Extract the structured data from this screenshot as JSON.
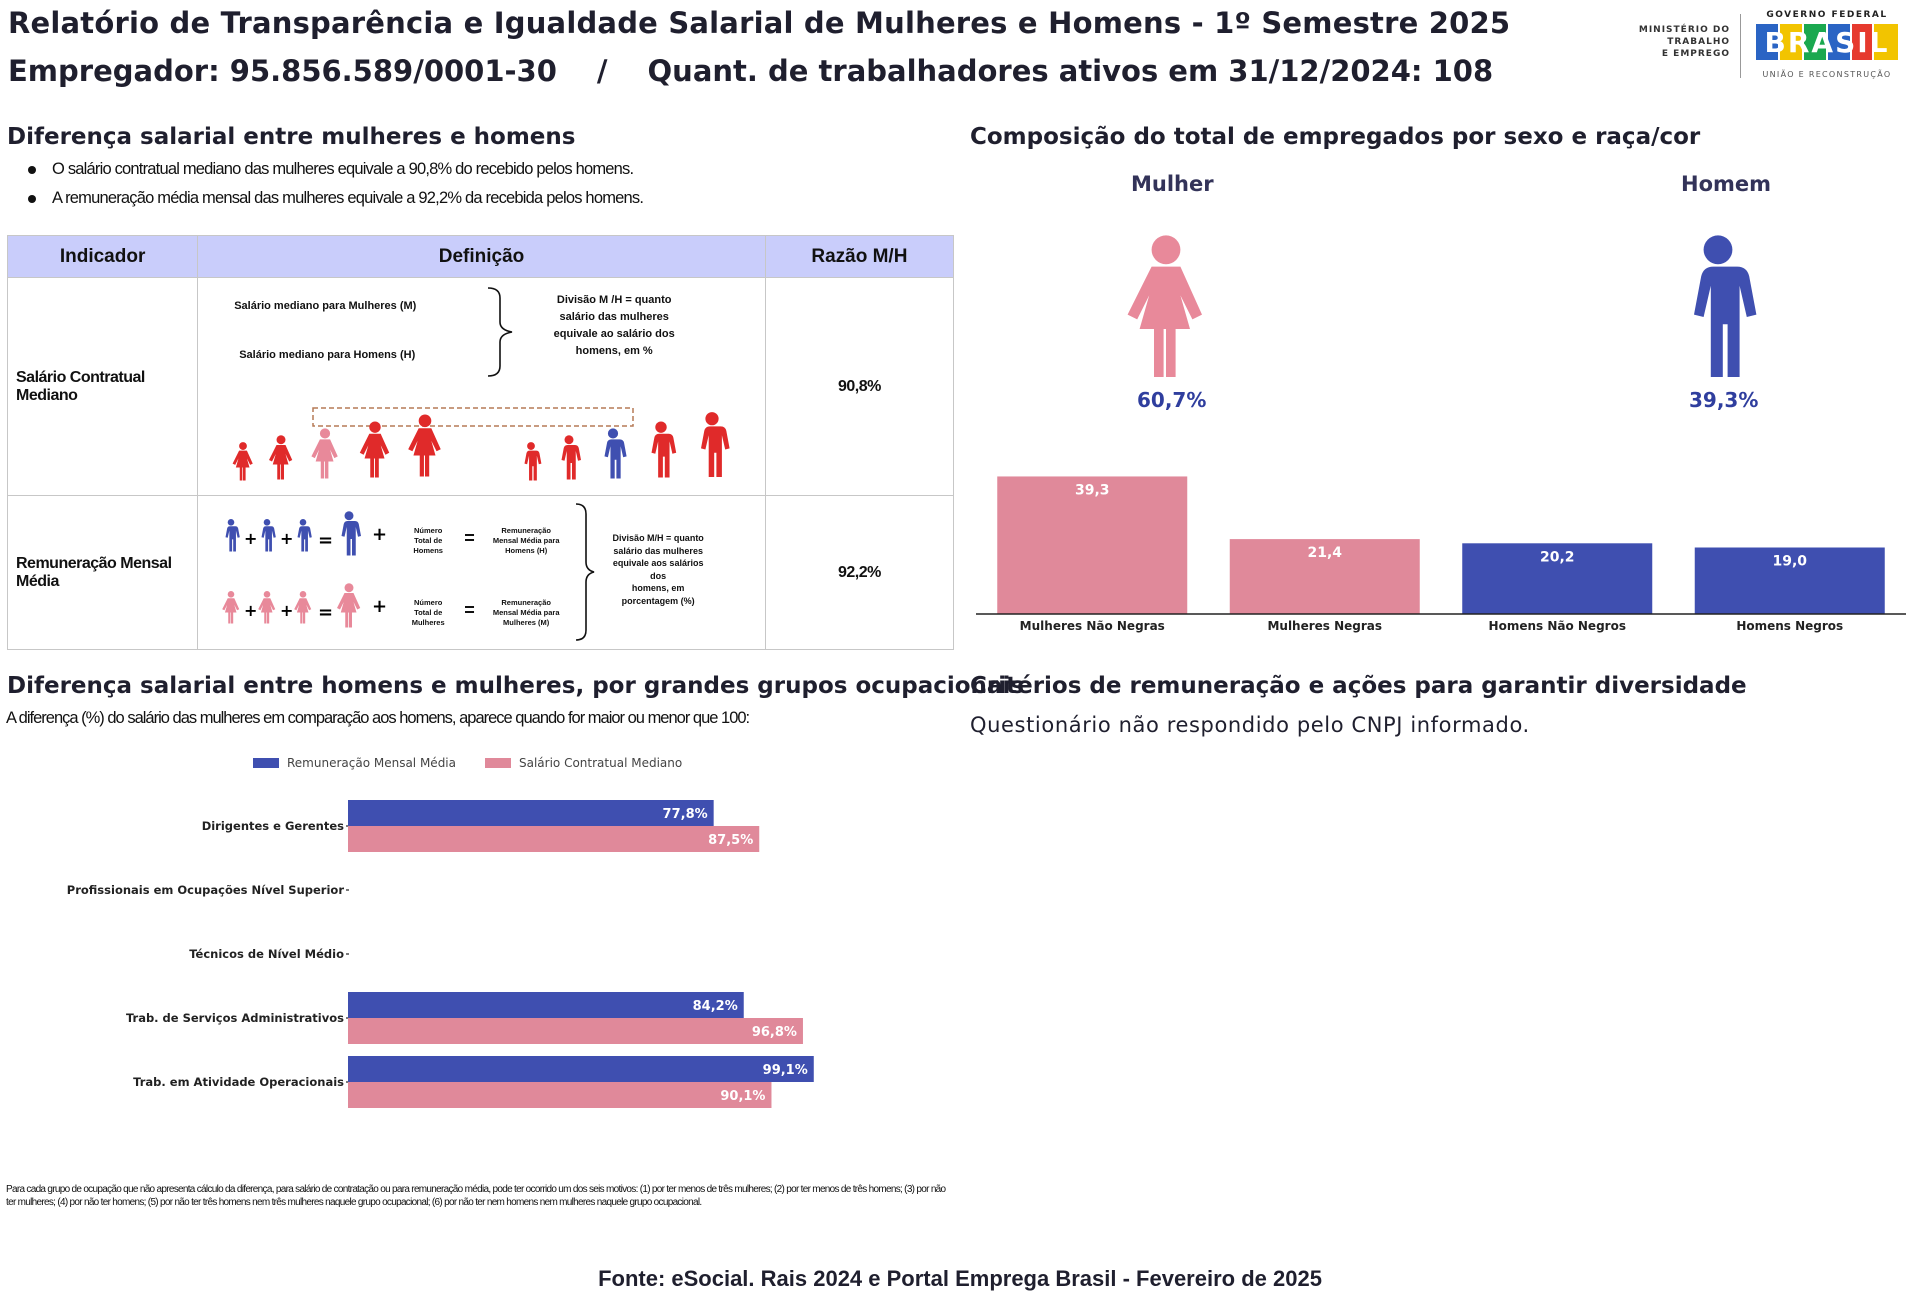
{
  "header": {
    "title": "Relatório de Transparência e Igualdade Salarial de Mulheres e Homens - 1º Semestre 2025",
    "employer_label": "Empregador: 95.856.589/0001-30",
    "separator": "/",
    "workers_label": "Quant. de trabalhadores ativos em 31/12/2024: 108"
  },
  "logos": {
    "ministry_lines": [
      "MINISTÉRIO DO",
      "TRABALHO",
      "E EMPREGO"
    ],
    "gov_top": "GOVERNO FEDERAL",
    "gov_word": "BRASIL",
    "gov_bottom": "UNIÃO E RECONSTRUÇÃO"
  },
  "salary_diff": {
    "title": "Diferença salarial entre mulheres e homens",
    "bullets": [
      "O salário contratual mediano das mulheres equivale a 90,8% do recebido pelos homens.",
      "A remuneração média mensal das mulheres equivale a 92,2% da recebida pelos homens."
    ]
  },
  "indicator_table": {
    "headers": [
      "Indicador",
      "Definição",
      "Razão M/H"
    ],
    "rows": [
      {
        "indicator": "Salário Contratual Mediano",
        "ratio": "90,8%",
        "def_left_top": "Salário mediano para Mulheres (M)",
        "def_left_bottom": "Salário mediano para Homens (H)",
        "def_right": [
          "Divisão M /H = quanto",
          "salário das mulheres",
          "equivale ao salário dos",
          "homens, em %"
        ]
      },
      {
        "indicator": "Remuneração Mensal Média",
        "ratio": "92,2%",
        "total_men": [
          "Número",
          "Total de",
          "Homens"
        ],
        "total_women": [
          "Número",
          "Total de",
          "Mulheres"
        ],
        "rem_men": [
          "Remuneração",
          "Mensal Média para",
          "Homens (H)"
        ],
        "rem_women": [
          "Remuneração",
          "Mensal Média para",
          "Mulheres (M)"
        ],
        "def_right": [
          "Divisão M/H = quanto",
          "salário das mulheres",
          "equivale aos salários",
          "dos",
          "homens, em",
          "porcentagem (%)"
        ]
      }
    ]
  },
  "composition": {
    "title": "Composição do total de empregados por sexo e raça/cor",
    "female_label": "Mulher",
    "male_label": "Homem",
    "female_pct": "60,7%",
    "male_pct": "39,3%",
    "colors": {
      "female": "#e0899a",
      "male": "#3f4fb0"
    }
  },
  "chart_data": [
    {
      "type": "bar",
      "categories": [
        "Mulheres Não Negras",
        "Mulheres Negras",
        "Homens Não Negros",
        "Homens Negros"
      ],
      "values": [
        39.3,
        21.4,
        20.2,
        19.0
      ],
      "value_labels": [
        "39,3",
        "21,4",
        "20,2",
        "19,0"
      ],
      "colors": [
        "#e0899a",
        "#e0899a",
        "#3f4fb0",
        "#3f4fb0"
      ],
      "ylim": [
        0,
        40
      ],
      "grid": false
    },
    {
      "type": "bar",
      "orientation": "horizontal",
      "categories": [
        "Dirigentes e Gerentes",
        "Profissionais em Ocupações Nível Superior",
        "Técnicos de Nível Médio",
        "Trab. de Serviços Administrativos",
        "Trab. em Atividade Operacionais"
      ],
      "series": [
        {
          "name": "Remuneração Mensal Média",
          "values": [
            77.8,
            null,
            null,
            84.2,
            99.1
          ],
          "labels": [
            "77,8%",
            "",
            "",
            "84,2%",
            "99,1%"
          ],
          "color": "#3f4fb0"
        },
        {
          "name": "Salário Contratual Mediano",
          "values": [
            87.5,
            null,
            null,
            96.8,
            90.1
          ],
          "labels": [
            "87,5%",
            "",
            "",
            "96,8%",
            "90,1%"
          ],
          "color": "#e0899a"
        }
      ],
      "xlim": [
        0,
        100
      ],
      "legend": "top",
      "grid": false
    }
  ],
  "occupational": {
    "title": "Diferença salarial entre homens e mulheres, por grandes grupos ocupacionais",
    "subtitle": "A diferença (%) do salário das mulheres em comparação aos homens, aparece quando for maior ou menor que 100:"
  },
  "criteria": {
    "title": "Critérios de remuneração e ações para garantir diversidade",
    "text": "Questionário não respondido pelo CNPJ informado."
  },
  "footnote": "Para cada grupo de ocupação que não apresenta cálculo da diferença, para salário de contratação ou para remuneração média, pode ter ocorrido um dos seis motivos: (1) por ter menos de três mulheres; (2) por ter menos de três homens; (3) por não ter mulheres; (4) por não ter homens; (5) por não ter três homens nem três mulheres naquele grupo ocupacional; (6) por não ter nem homens nem mulheres naquele grupo ocupacional.",
  "source": "Fonte: eSocial. Rais 2024 e Portal Emprega Brasil - Fevereiro de 2025"
}
